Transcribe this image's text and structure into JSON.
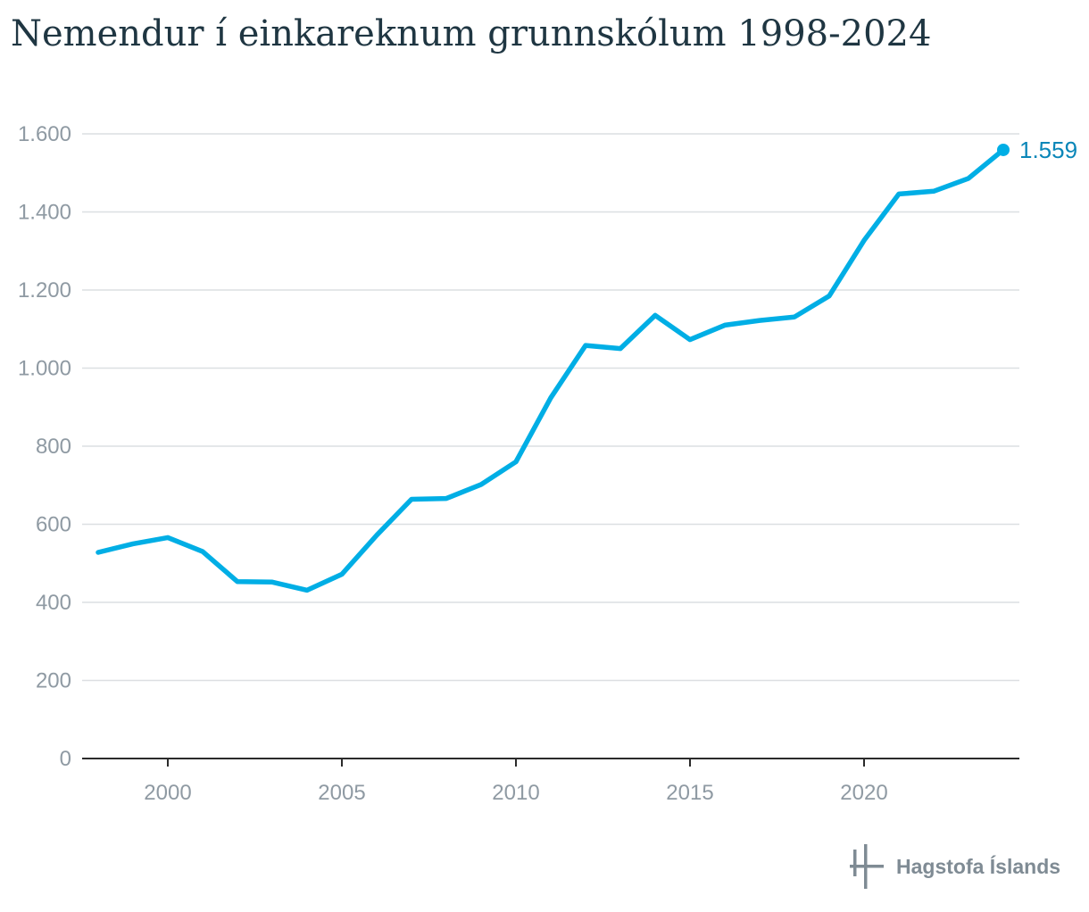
{
  "chart_data": {
    "type": "line",
    "title": "Nemendur í einkareknum grunnskólum 1998-2024",
    "xlabel": "",
    "ylabel": "",
    "xlim": [
      1998,
      2024
    ],
    "ylim": [
      0,
      1600
    ],
    "xticks": [
      2000,
      2005,
      2010,
      2015,
      2020
    ],
    "xtick_labels": [
      "2000",
      "2005",
      "2010",
      "2015",
      "2020"
    ],
    "yticks": [
      0,
      200,
      400,
      600,
      800,
      1000,
      1200,
      1400,
      1600
    ],
    "ytick_labels": [
      "0",
      "200",
      "400",
      "600",
      "800",
      "1.000",
      "1.200",
      "1.400",
      "1.600"
    ],
    "grid": true,
    "legend": "none",
    "color": "#00aee5",
    "x": [
      1998,
      1999,
      2000,
      2001,
      2002,
      2003,
      2004,
      2005,
      2006,
      2007,
      2008,
      2009,
      2010,
      2011,
      2012,
      2013,
      2014,
      2015,
      2016,
      2017,
      2018,
      2019,
      2020,
      2021,
      2022,
      2023,
      2024
    ],
    "series": [
      {
        "values": [
          528,
          550,
          566,
          530,
          453,
          452,
          431,
          472,
          572,
          664,
          666,
          702,
          760,
          924,
          1058,
          1050,
          1135,
          1073,
          1110,
          1122,
          1131,
          1185,
          1327,
          1446,
          1453,
          1486,
          1559
        ]
      }
    ],
    "annotations": [
      {
        "x": 2024,
        "y": 1559,
        "text": "1.559"
      }
    ]
  },
  "branding": {
    "logo_text": "Hagstofa Íslands",
    "logo_icon": "hagstofa-logo-icon"
  },
  "colors": {
    "line": "#00aee5",
    "end_label": "#0a86b8",
    "title": "#1f3642",
    "tick_text": "#8f9aa3",
    "grid": "#dcdfe2",
    "axis": "#2b2b2b",
    "logo": "#7f8b94"
  }
}
